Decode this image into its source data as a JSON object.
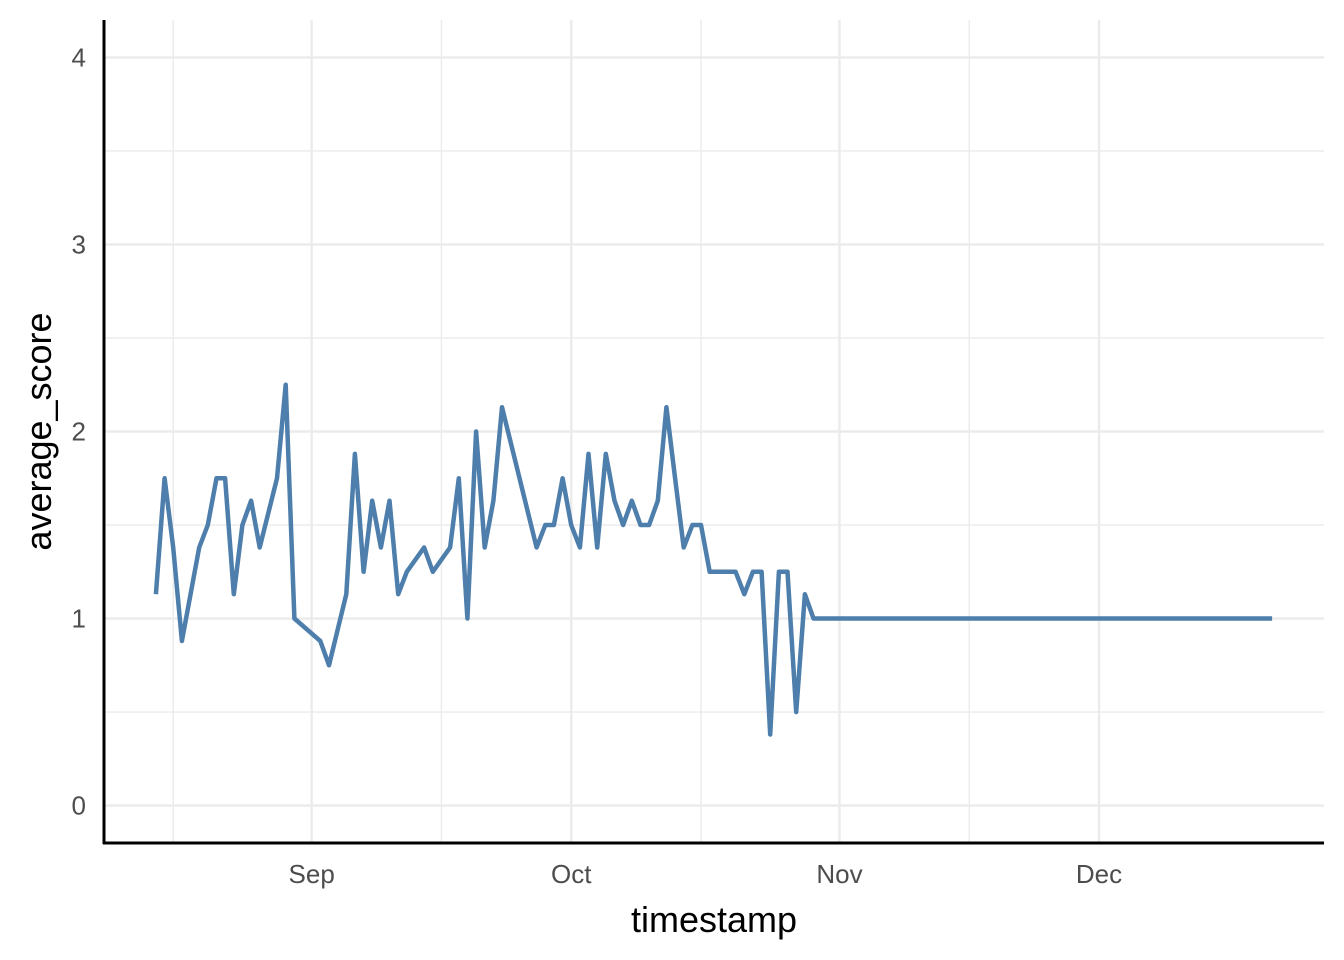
{
  "colors": {
    "line": "#4e7eab",
    "grid": "#ebebeb",
    "axis": "#000000",
    "tick_text": "#4d4d4d"
  },
  "chart_data": {
    "type": "line",
    "title": "",
    "xlabel": "timestamp",
    "ylabel": "average_score",
    "ylim": [
      -0.2,
      4.2
    ],
    "xlim": [
      "2023-08-08",
      "2023-12-27"
    ],
    "y_ticks": [
      0,
      1,
      2,
      3,
      4
    ],
    "y_tick_labels": [
      "0",
      "1",
      "2",
      "3",
      "4"
    ],
    "x_ticks": [
      "2023-09-01",
      "2023-10-01",
      "2023-11-01",
      "2023-12-01"
    ],
    "x_tick_labels": [
      "Sep",
      "Oct",
      "Nov",
      "Dec"
    ],
    "x_minor_gridlines": [
      "2023-08-16",
      "2023-09-16",
      "2023-10-16",
      "2023-11-16"
    ],
    "y_minor_gridlines": [
      0.5,
      1.5,
      2.5,
      3.5
    ],
    "grid": true,
    "legend": "none",
    "series": [
      {
        "x": [
          "2023-08-14",
          "2023-08-15",
          "2023-08-16",
          "2023-08-17",
          "2023-08-19",
          "2023-08-20",
          "2023-08-21",
          "2023-08-22",
          "2023-08-23",
          "2023-08-24",
          "2023-08-25",
          "2023-08-26",
          "2023-08-28",
          "2023-08-29",
          "2023-08-30",
          "2023-09-02",
          "2023-09-03",
          "2023-09-05",
          "2023-09-06",
          "2023-09-07",
          "2023-09-08",
          "2023-09-09",
          "2023-09-10",
          "2023-09-11",
          "2023-09-12",
          "2023-09-14",
          "2023-09-15",
          "2023-09-17",
          "2023-09-18",
          "2023-09-19",
          "2023-09-20",
          "2023-09-21",
          "2023-09-22",
          "2023-09-23",
          "2023-09-27",
          "2023-09-28",
          "2023-09-29",
          "2023-09-30",
          "2023-10-01",
          "2023-10-02",
          "2023-10-03",
          "2023-10-04",
          "2023-10-05",
          "2023-10-06",
          "2023-10-07",
          "2023-10-08",
          "2023-10-09",
          "2023-10-10",
          "2023-10-11",
          "2023-10-12",
          "2023-10-13",
          "2023-10-14",
          "2023-10-15",
          "2023-10-16",
          "2023-10-17",
          "2023-10-18",
          "2023-10-19",
          "2023-10-20",
          "2023-10-21",
          "2023-10-22",
          "2023-10-23",
          "2023-10-24",
          "2023-10-25",
          "2023-10-26",
          "2023-10-27",
          "2023-10-28",
          "2023-10-29",
          "2023-10-30",
          "2023-10-31",
          "2023-11-01",
          "2023-11-02",
          "2023-11-03",
          "2023-11-04",
          "2023-11-05",
          "2023-11-06",
          "2023-11-07",
          "2023-11-08",
          "2023-11-09",
          "2023-11-10",
          "2023-11-11",
          "2023-11-12",
          "2023-11-13",
          "2023-11-14",
          "2023-11-15",
          "2023-11-16",
          "2023-11-17",
          "2023-11-18",
          "2023-11-19",
          "2023-11-20",
          "2023-11-21",
          "2023-11-22",
          "2023-11-23",
          "2023-11-24",
          "2023-11-25",
          "2023-11-26",
          "2023-11-27",
          "2023-11-28",
          "2023-11-29",
          "2023-11-30",
          "2023-12-01",
          "2023-12-02",
          "2023-12-03",
          "2023-12-04",
          "2023-12-05",
          "2023-12-06",
          "2023-12-07",
          "2023-12-08",
          "2023-12-09",
          "2023-12-10",
          "2023-12-11",
          "2023-12-12",
          "2023-12-13",
          "2023-12-14",
          "2023-12-15",
          "2023-12-16",
          "2023-12-17",
          "2023-12-18",
          "2023-12-19",
          "2023-12-20",
          "2023-12-21"
        ],
        "y": [
          1.13,
          1.75,
          1.38,
          0.88,
          1.38,
          1.5,
          1.75,
          1.75,
          1.13,
          1.5,
          1.63,
          1.38,
          1.75,
          2.25,
          1.0,
          0.88,
          0.75,
          1.13,
          1.88,
          1.25,
          1.63,
          1.38,
          1.63,
          1.13,
          1.25,
          1.38,
          1.25,
          1.38,
          1.75,
          1.0,
          2.0,
          1.38,
          1.63,
          2.13,
          1.38,
          1.5,
          1.5,
          1.75,
          1.5,
          1.38,
          1.88,
          1.38,
          1.88,
          1.63,
          1.5,
          1.63,
          1.5,
          1.5,
          1.63,
          2.13,
          1.75,
          1.38,
          1.5,
          1.5,
          1.25,
          1.25,
          1.25,
          1.25,
          1.13,
          1.25,
          1.25,
          0.38,
          1.25,
          1.25,
          0.5,
          1.13,
          1.0,
          1.0,
          1.0,
          1.0,
          1.0,
          1.0,
          1.0,
          1.0,
          1.0,
          1.0,
          1.0,
          1.0,
          1.0,
          1.0,
          1.0,
          1.0,
          1.0,
          1.0,
          1.0,
          1.0,
          1.0,
          1.0,
          1.0,
          1.0,
          1.0,
          1.0,
          1.0,
          1.0,
          1.0,
          1.0,
          1.0,
          1.0,
          1.0,
          1.0,
          1.0,
          1.0,
          1.0,
          1.0,
          1.0,
          1.0,
          1.0,
          1.0,
          1.0,
          1.0,
          1.0,
          1.0,
          1.0,
          1.0,
          1.0,
          1.0,
          1.0,
          1.0,
          1.0,
          1.0
        ]
      }
    ]
  }
}
